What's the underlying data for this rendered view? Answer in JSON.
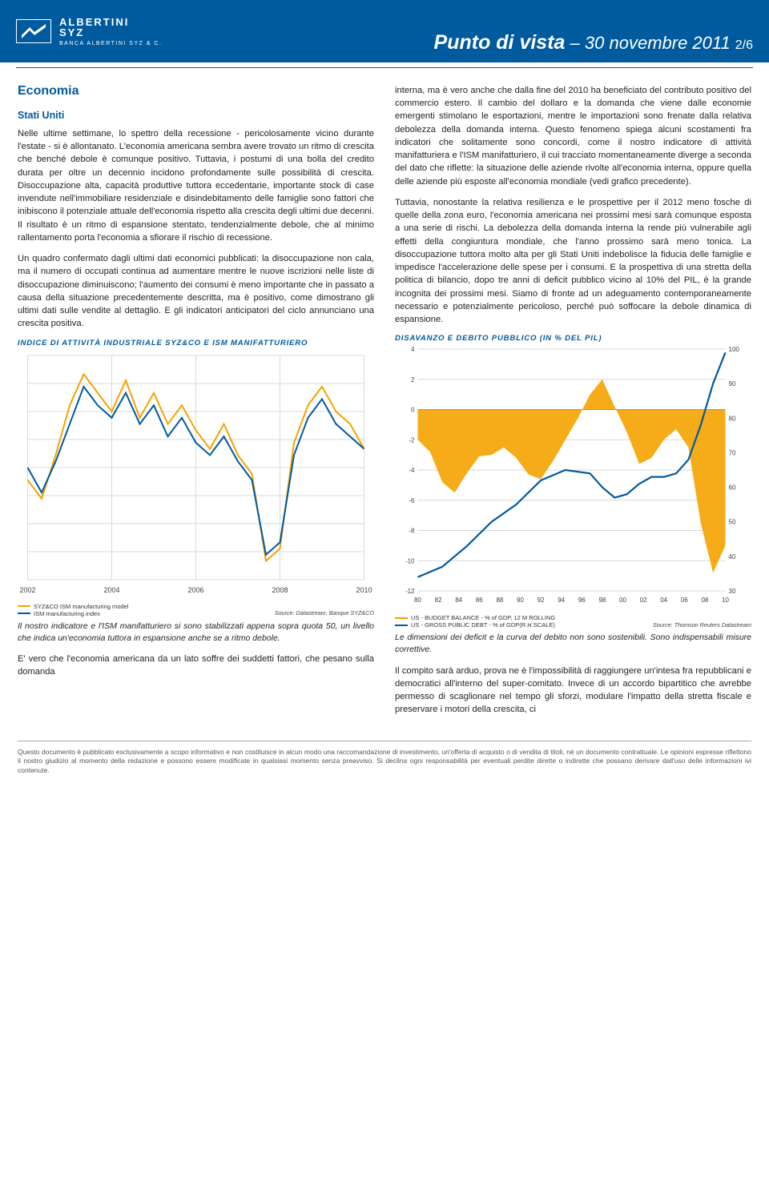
{
  "header": {
    "brand_line1": "ALBERTINI",
    "brand_line2": "SYZ",
    "brand_sub": "BANCA ALBERTINI SYZ & C.",
    "title_main": "Punto di vista",
    "title_sep": " – ",
    "title_date": "30 novembre 2011",
    "page_indicator": "2/6",
    "bg_color": "#005a9e"
  },
  "left": {
    "section": "Economia",
    "subtitle": "Stati Uniti",
    "p1": "Nelle ultime settimane, lo spettro della recessione - pericolosamente vicino durante l'estate - si è allontanato. L'economia americana sembra avere trovato un ritmo di crescita che benché debole è comunque positivo. Tuttavia, i postumi di una bolla del credito durata per oltre un decennio incidono profondamente sulle possibilità di crescita. Disoccupazione alta, capacità produttive tuttora eccedentarie, importante stock di case invendute nell'immobiliare residenziale e disindebitamento delle famiglie sono fattori che inibiscono il potenziale attuale dell'economia rispetto alla crescita degli ultimi due decenni. Il risultato è un ritmo di espansione stentato, tendenzialmente debole, che al minimo rallentamento porta l'economia a sfiorare il rischio di recessione.",
    "p2": "Un quadro confermato dagli ultimi dati economici pubblicati: la disoccupazione non cala, ma il numero di occupati continua ad aumentare mentre le nuove iscrizioni nelle liste di disoccupazione diminuiscono; l'aumento dei consumi è meno importante che in passato a causa della situazione precedentemente descritta, ma è positivo, come dimostrano gli ultimi dati sulle vendite al dettaglio. E gli indicatori anticipatori del ciclo annunciano una crescita positiva.",
    "chart_title": "INDICE DI ATTIVITÀ INDUSTRIALE SYZ&CO E ISM MANIFATTURIERO",
    "caption": "Il nostro indicatore e l'ISM manifatturiero si sono stabilizzati appena sopra quota 50, un livello che indica un'economia tuttora in espansione anche se a ritmo debole.",
    "p3": "E' vero che l'economia americana da un lato soffre dei suddetti fattori, che pesano sulla domanda",
    "chart": {
      "type": "line",
      "x_labels": [
        "2002",
        "2004",
        "2006",
        "2008",
        "2010"
      ],
      "bg": "#ffffff",
      "grid_color": "#d9d9d9",
      "series": [
        {
          "name": "SYZ&CO ISM manufacturing model",
          "color": "#f5a300",
          "points": [
            [
              0,
              46
            ],
            [
              8,
              43
            ],
            [
              16,
              50
            ],
            [
              24,
              58
            ],
            [
              32,
              63
            ],
            [
              40,
              60
            ],
            [
              48,
              57
            ],
            [
              56,
              62
            ],
            [
              64,
              56
            ],
            [
              72,
              60
            ],
            [
              80,
              55
            ],
            [
              88,
              58
            ],
            [
              96,
              54
            ],
            [
              104,
              51
            ],
            [
              112,
              55
            ],
            [
              120,
              50
            ],
            [
              128,
              47
            ],
            [
              136,
              33
            ],
            [
              144,
              35
            ],
            [
              152,
              52
            ],
            [
              160,
              58
            ],
            [
              168,
              61
            ],
            [
              176,
              57
            ],
            [
              184,
              55
            ],
            [
              192,
              51
            ]
          ]
        },
        {
          "name": "ISM manufacturing index",
          "color": "#005a9e",
          "points": [
            [
              0,
              48
            ],
            [
              8,
              44
            ],
            [
              16,
              49
            ],
            [
              24,
              55
            ],
            [
              32,
              61
            ],
            [
              40,
              58
            ],
            [
              48,
              56
            ],
            [
              56,
              60
            ],
            [
              64,
              55
            ],
            [
              72,
              58
            ],
            [
              80,
              53
            ],
            [
              88,
              56
            ],
            [
              96,
              52
            ],
            [
              104,
              50
            ],
            [
              112,
              53
            ],
            [
              120,
              49
            ],
            [
              128,
              46
            ],
            [
              136,
              34
            ],
            [
              144,
              36
            ],
            [
              152,
              50
            ],
            [
              160,
              56
            ],
            [
              168,
              59
            ],
            [
              176,
              55
            ],
            [
              184,
              53
            ],
            [
              192,
              51
            ]
          ]
        }
      ],
      "y_min": 30,
      "y_max": 66,
      "source": "Source: Datastream, Banque SYZ&CO"
    }
  },
  "right": {
    "p1": "interna, ma è vero anche che dalla fine del 2010 ha beneficiato del contributo positivo del commercio estero. Il cambio del dollaro e la domanda che viene dalle economie emergenti stimolano le esportazioni, mentre le importazioni sono frenate dalla relativa debolezza della domanda interna. Questo fenomeno spiega alcuni scostamenti fra indicatori che solitamente sono concordi, come il nostro indicatore di attività manifatturiera e l'ISM manifatturiero, il cui tracciato momentaneamente diverge a seconda del dato che riflette: la situazione delle aziende rivolte all'economia interna, oppure quella delle aziende più esposte all'economia mondiale (vedi grafico precedente).",
    "p2": "Tuttavia, nonostante la relativa resilienza e le prospettive per il 2012 meno fosche di quelle della zona euro, l'economia americana nei prossimi mesi sarà comunque esposta a una serie di rischi. La debolezza della domanda interna la rende più vulnerabile agli effetti della congiuntura mondiale, che l'anno prossimo sarà meno tonica. La disoccupazione tuttora molto alta per gli Stati Uniti indebolisce la fiducia delle famiglie e impedisce l'accelerazione delle spese per i consumi. E la prospettiva di una stretta della politica di bilancio, dopo tre anni di deficit pubblico vicino al 10% del PIL, è la grande incognita dei prossimi mesi. Siamo di fronte ad un adeguamento contemporaneamente necessario e potenzialmente pericoloso, perché può soffocare la debole dinamica di espansione.",
    "chart_title": "DISAVANZO E DEBITO PUBBLICO (IN % DEL PIL)",
    "chart": {
      "type": "dual-axis-area-line",
      "bg": "#ffffff",
      "grid_color": "#d9d9d9",
      "x_labels": [
        "80",
        "82",
        "84",
        "86",
        "88",
        "90",
        "92",
        "94",
        "96",
        "98",
        "00",
        "02",
        "04",
        "06",
        "08",
        "10"
      ],
      "left_axis": {
        "min": -12,
        "max": 4,
        "step": 2,
        "ticks": [
          -12,
          -10,
          -8,
          -6,
          -4,
          -2,
          0,
          2,
          4
        ]
      },
      "right_axis": {
        "min": 30,
        "max": 100,
        "step": 10,
        "ticks": [
          30,
          40,
          50,
          60,
          70,
          80,
          90,
          100
        ]
      },
      "area": {
        "name": "US - BUDGET BALANCE - % of GDP, 12 M ROLLING",
        "color": "#f5a300",
        "points": [
          [
            0,
            -2.0
          ],
          [
            12,
            -2.8
          ],
          [
            24,
            -4.8
          ],
          [
            36,
            -5.5
          ],
          [
            48,
            -4.2
          ],
          [
            60,
            -3.1
          ],
          [
            72,
            -3.0
          ],
          [
            84,
            -2.5
          ],
          [
            96,
            -3.2
          ],
          [
            108,
            -4.3
          ],
          [
            120,
            -4.6
          ],
          [
            132,
            -3.4
          ],
          [
            144,
            -2.0
          ],
          [
            156,
            -0.6
          ],
          [
            168,
            1.0
          ],
          [
            180,
            2.0
          ],
          [
            192,
            0.2
          ],
          [
            204,
            -1.5
          ],
          [
            216,
            -3.6
          ],
          [
            228,
            -3.2
          ],
          [
            240,
            -2.0
          ],
          [
            252,
            -1.3
          ],
          [
            264,
            -2.5
          ],
          [
            276,
            -7.5
          ],
          [
            288,
            -10.8
          ],
          [
            300,
            -9.0
          ]
        ]
      },
      "line": {
        "name": "US - GROSS PUBLIC DEBT - % of GDP(R.H.SCALE)",
        "color": "#005a9e",
        "points": [
          [
            0,
            34
          ],
          [
            24,
            37
          ],
          [
            48,
            43
          ],
          [
            72,
            50
          ],
          [
            96,
            55
          ],
          [
            120,
            62
          ],
          [
            144,
            65
          ],
          [
            168,
            64
          ],
          [
            180,
            60
          ],
          [
            192,
            57
          ],
          [
            204,
            58
          ],
          [
            216,
            61
          ],
          [
            228,
            63
          ],
          [
            240,
            63
          ],
          [
            252,
            64
          ],
          [
            264,
            68
          ],
          [
            276,
            78
          ],
          [
            288,
            90
          ],
          [
            300,
            99
          ]
        ]
      },
      "source": "Source: Thomson Reuters Datastream"
    },
    "p3": "Le dimensioni dei deficit e la curva del debito non sono sostenibili. Sono indispensabili misure correttive.",
    "p4": "Il compito sarà arduo, prova ne è l'impossibilità di raggiungere un'intesa fra repubblicani e democratici all'interno del super-comitato. Invece di un accordo bipartitico che avrebbe permesso di scaglionare nel tempo gli sforzi, modulare l'impatto della stretta fiscale e preservare i motori della crescita, ci"
  },
  "footer": "Questo documento è pubblicato esclusivamente a scopo informativo e non costituisce in alcun modo una raccomandazione di investimento, un'offerta di acquisto o di vendita di titoli, né un documento contrattuale. Le opinioni espresse riflettono il nostro giudizio al momento della redazione e possono essere modificate in qualsiasi momento senza preavviso. Si declina ogni responsabilità per eventuali perdite dirette o indirette che possano derivare dall'uso delle informazioni ivi contenute."
}
